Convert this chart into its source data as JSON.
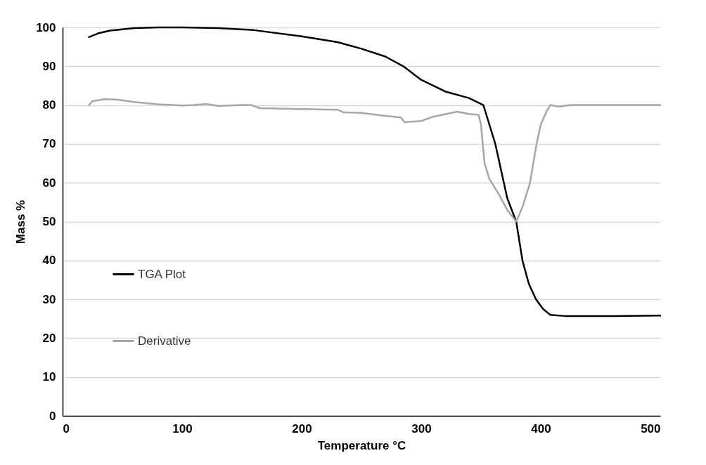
{
  "chart_data": {
    "type": "line",
    "xlabel": "Temperature °C",
    "ylabel": "Mass %",
    "xlim": [
      0,
      500
    ],
    "xticks": [
      0,
      100,
      200,
      300,
      400,
      500
    ],
    "ylim": [
      0,
      100
    ],
    "yticks": [
      0,
      10,
      20,
      30,
      40,
      50,
      60,
      70,
      80,
      90,
      100
    ],
    "grid": "y",
    "legend": "left",
    "series": [
      {
        "name": "TGA Plot",
        "color": "#000000",
        "x": [
          22,
          30,
          40,
          60,
          80,
          100,
          130,
          160,
          200,
          230,
          250,
          270,
          285,
          300,
          320,
          340,
          352,
          357,
          362,
          367,
          372,
          379.5,
          384.7,
          390,
          396,
          402,
          408,
          420,
          460,
          500
        ],
        "values": [
          97.5,
          98.5,
          99.2,
          99.8,
          100,
          100,
          99.8,
          99.3,
          97.7,
          96.2,
          94.5,
          92.5,
          90,
          86.5,
          83.5,
          81.8,
          80,
          75,
          70,
          63,
          56,
          50,
          40,
          34,
          30,
          27.5,
          26,
          25.7,
          25.7,
          25.8
        ]
      },
      {
        "name": "Derivative",
        "color": "#a6a6a6",
        "x": [
          22,
          25,
          35,
          45,
          60,
          80,
          100,
          110,
          120,
          130,
          150,
          158,
          165,
          200,
          230,
          235,
          250,
          270,
          283,
          286,
          300,
          310,
          330,
          340,
          348,
          350,
          353,
          357,
          365,
          372,
          379.5,
          385,
          391,
          396.5,
          400,
          405,
          408,
          415,
          425,
          500
        ],
        "values": [
          80,
          81,
          81.5,
          81.4,
          80.8,
          80.2,
          79.9,
          80,
          80.3,
          79.8,
          80,
          80,
          79.2,
          79,
          78.8,
          78.1,
          78,
          77.2,
          76.8,
          75.6,
          75.9,
          77,
          78.3,
          77.7,
          77.5,
          75,
          65,
          61,
          57,
          53,
          50,
          54,
          60,
          70,
          75,
          78.5,
          80,
          79.6,
          80,
          80
        ]
      }
    ]
  }
}
